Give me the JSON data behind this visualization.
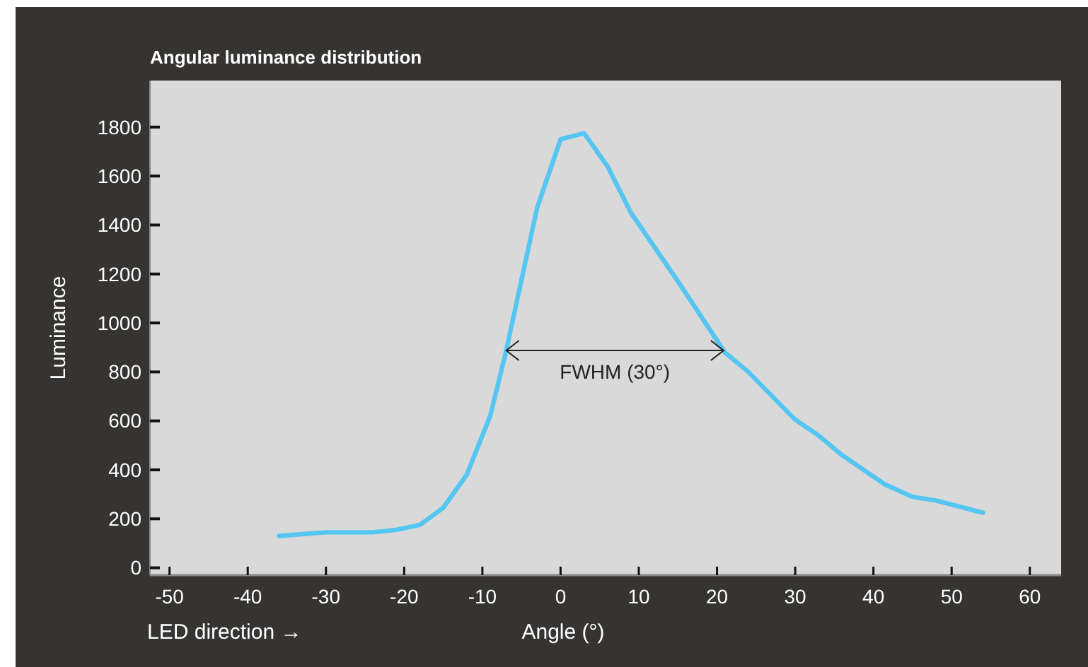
{
  "chart_data": {
    "type": "line",
    "title": "Angular luminance distribution",
    "xlabel": "Angle (°)",
    "ylabel": "Luminance",
    "annotations": [
      "FWHM (30°)",
      "LED direction →"
    ],
    "x": [
      -36,
      -30,
      -24,
      -21,
      -18,
      -15,
      -12,
      -9,
      -7,
      -3,
      0,
      3,
      6,
      9,
      15,
      21,
      24,
      30,
      33,
      36,
      41.5,
      45,
      48,
      54
    ],
    "series": [
      {
        "color": "#55c5f2",
        "values": [
          130,
          145,
          145,
          155,
          175,
          245,
          380,
          620,
          880,
          1470,
          1750,
          1775,
          1640,
          1450,
          1170,
          880,
          800,
          605,
          540,
          460,
          340,
          290,
          275,
          225
        ]
      }
    ],
    "xlim": [
      -52.5,
      64
    ],
    "ylim": [
      -30,
      1990
    ],
    "xticks": [
      -50,
      -40,
      -30,
      -20,
      -10,
      0,
      10,
      20,
      30,
      40,
      50,
      60
    ],
    "yticks": [
      0,
      200,
      400,
      600,
      800,
      1000,
      1200,
      1400,
      1600,
      1800
    ],
    "grid": false,
    "marker": "none",
    "line_style": "solid"
  }
}
